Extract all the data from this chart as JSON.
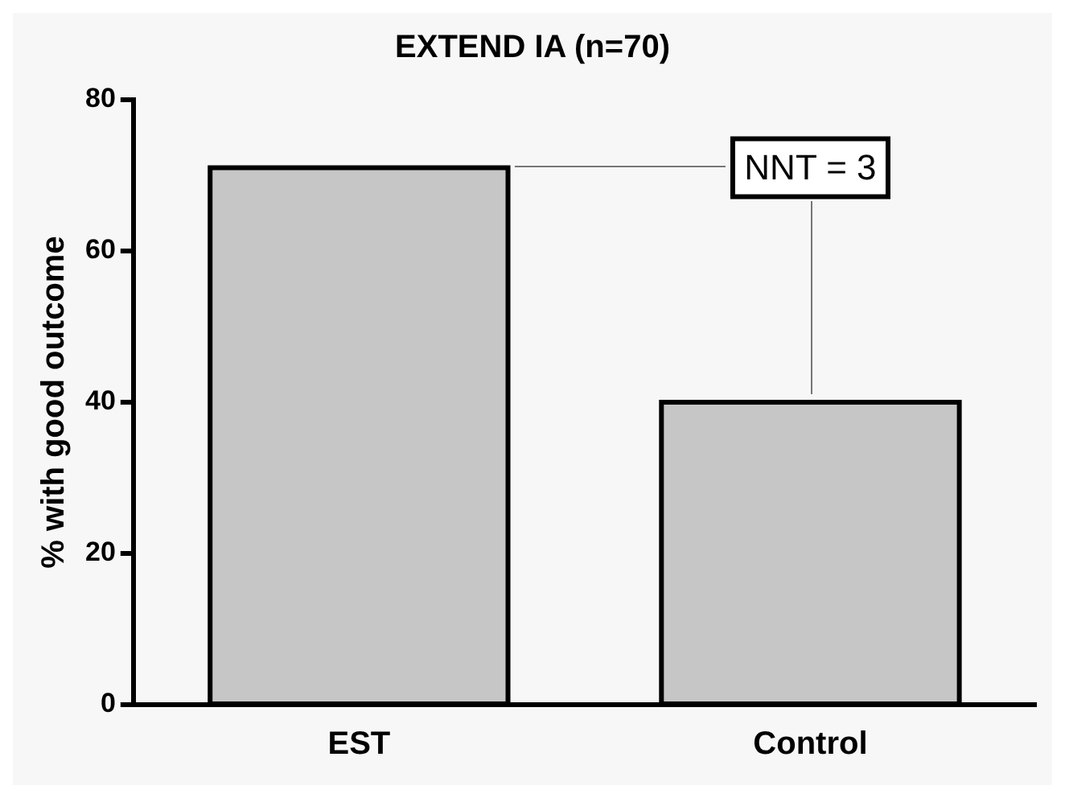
{
  "chart_data": {
    "type": "bar",
    "title": "EXTEND IA (n=70)",
    "ylabel": "% with good outcome",
    "categories": [
      "EST",
      "Control"
    ],
    "values": [
      71,
      40
    ],
    "color": "#c6c6c6",
    "ylim": [
      0,
      80
    ],
    "yticks": [
      0,
      20,
      40,
      60,
      80
    ],
    "grid": false,
    "legend": false,
    "annotations": [
      "NNT = 3"
    ]
  }
}
